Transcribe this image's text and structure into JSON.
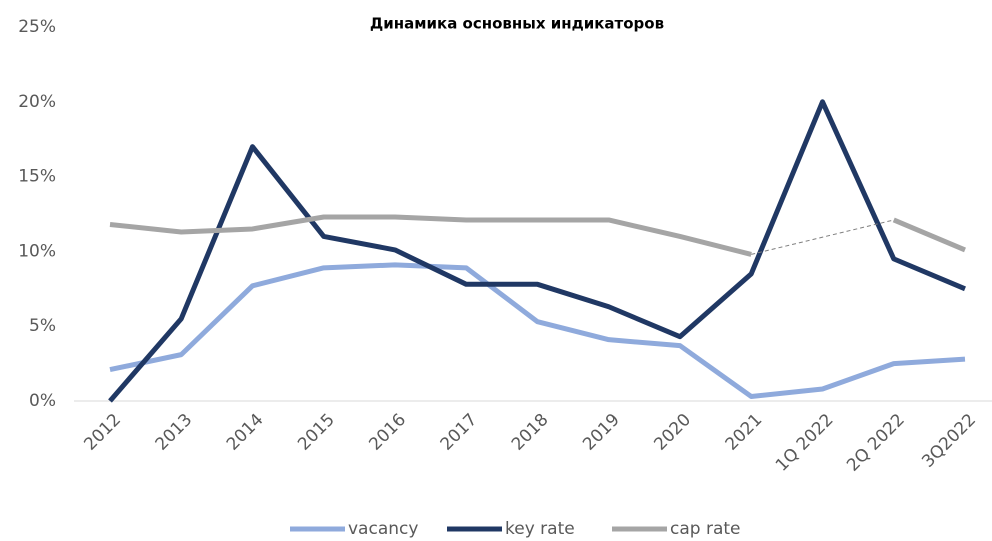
{
  "chart_data": {
    "type": "line",
    "title": "Динамика основных индикаторов",
    "categories": [
      "2012",
      "2013",
      "2014",
      "2015",
      "2016",
      "2017",
      "2018",
      "2019",
      "2020",
      "2021",
      "1Q 2022",
      "2Q 2022",
      "3Q2022"
    ],
    "series": [
      {
        "name": "vacancy",
        "color": "#8faadc",
        "values": [
          2.1,
          3.1,
          7.7,
          8.9,
          9.1,
          8.9,
          5.3,
          4.1,
          3.7,
          0.3,
          0.8,
          2.5,
          2.8
        ]
      },
      {
        "name": "key rate",
        "color": "#203864",
        "values": [
          0,
          5.5,
          17,
          11,
          10.1,
          7.8,
          7.8,
          6.3,
          4.3,
          8.5,
          20,
          9.5,
          7.5
        ]
      },
      {
        "name": "cap rate",
        "color": "#a5a5a5",
        "values": [
          11.8,
          11.3,
          11.5,
          12.3,
          12.3,
          12.1,
          12.1,
          12.1,
          11,
          9.8,
          null,
          12.1,
          10.1
        ]
      }
    ],
    "ylim": [
      0,
      25
    ],
    "yticks": [
      {
        "value": 0,
        "label": "0%"
      },
      {
        "value": 5,
        "label": "5%"
      },
      {
        "value": 10,
        "label": "10%"
      },
      {
        "value": 15,
        "label": "15%"
      },
      {
        "value": 20,
        "label": "20%"
      },
      {
        "value": 25,
        "label": "25%"
      }
    ],
    "legend": "bottom"
  }
}
